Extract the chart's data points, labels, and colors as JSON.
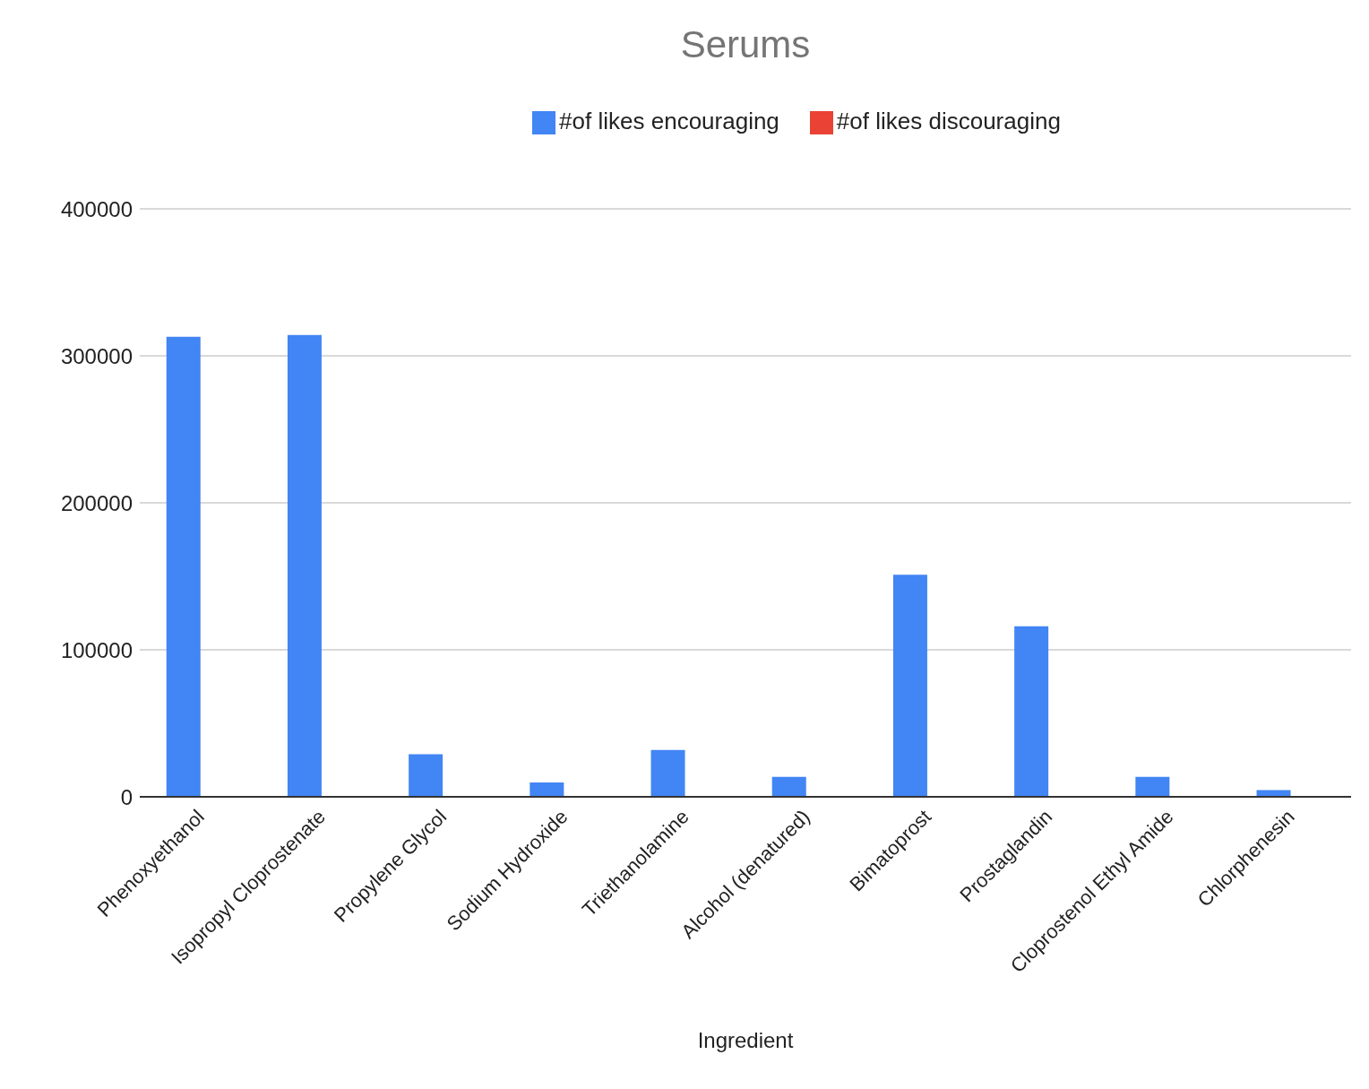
{
  "chart_data": {
    "type": "bar",
    "title": "Serums",
    "xlabel": "Ingredient",
    "categories": [
      "Phenoxyethanol",
      "Isopropyl Cloprostenate",
      "Propylene Glycol",
      "Sodium Hydroxide",
      "Triethanolamine",
      "Alcohol (denatured)",
      "Bimatoprost",
      "Prostaglandin",
      "Cloprostenol Ethyl Amide",
      "Chlorphenesin"
    ],
    "series": [
      {
        "name": "#of likes encouraging",
        "color": "#4285f4",
        "values": [
          313000,
          314200,
          29000,
          9700,
          31800,
          13600,
          151000,
          116000,
          13600,
          4500
        ]
      },
      {
        "name": "#of likes discouraging",
        "color": "#ea4335",
        "values": [
          0,
          0,
          0,
          0,
          0,
          0,
          0,
          0,
          0,
          0
        ]
      }
    ],
    "ylim": [
      0,
      400000
    ],
    "yticks": [
      0,
      100000,
      200000,
      300000,
      400000
    ],
    "grid": "y",
    "legend": "top"
  }
}
